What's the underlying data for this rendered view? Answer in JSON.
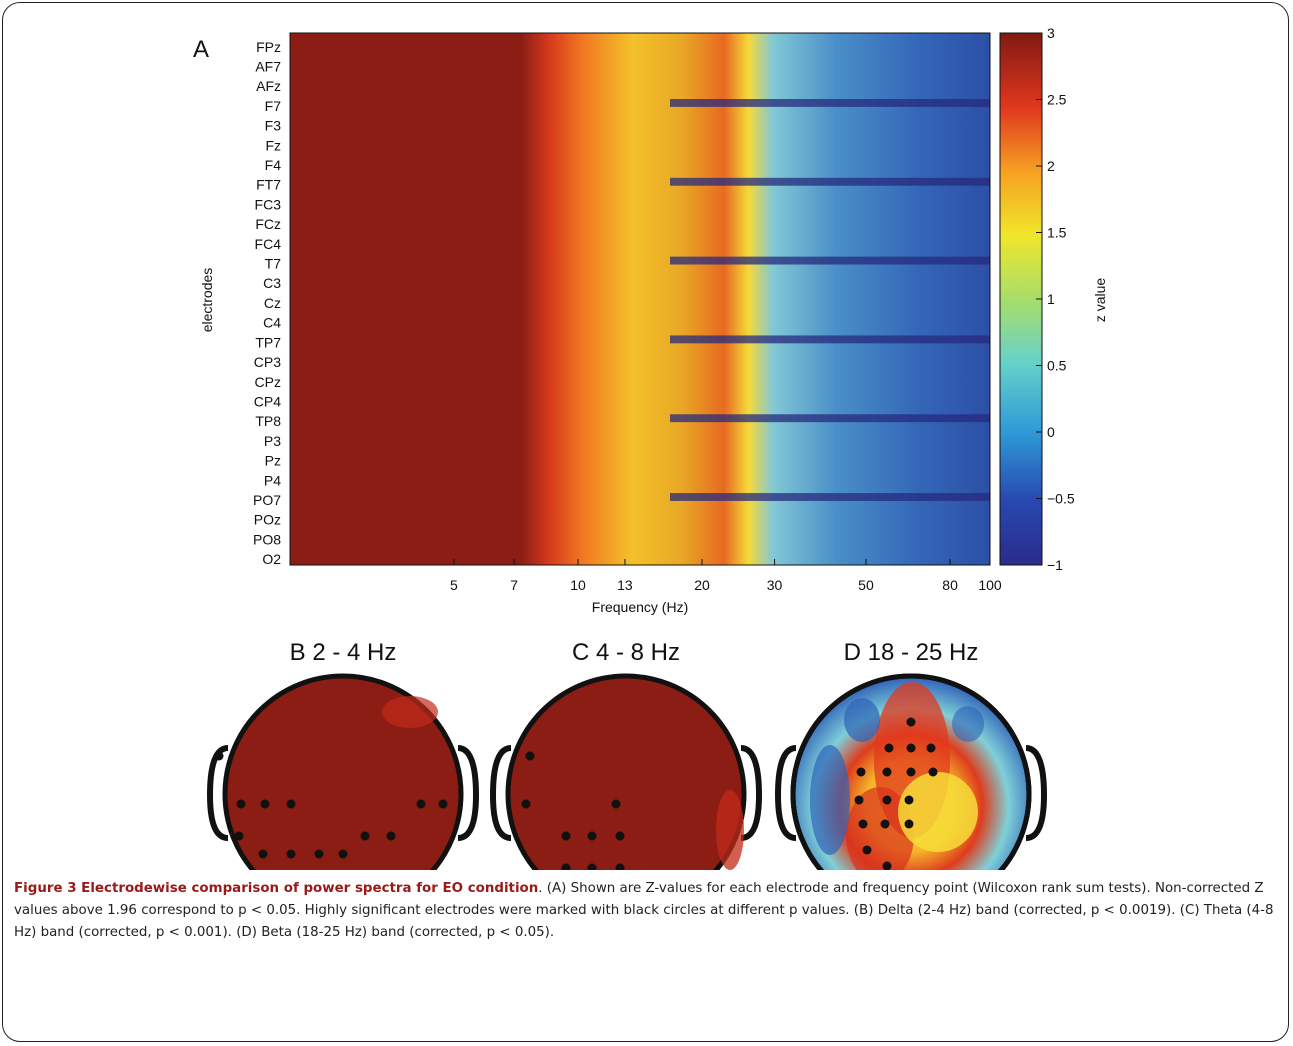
{
  "panel_a": {
    "letter": "A",
    "ylabel": "electrodes",
    "xlabel": "Frequency (Hz)",
    "electrodes": [
      "FPz",
      "AF7",
      "AFz",
      "F7",
      "F3",
      "Fz",
      "F4",
      "FT7",
      "FC3",
      "FCz",
      "FC4",
      "T7",
      "C3",
      "Cz",
      "C4",
      "TP7",
      "CP3",
      "CPz",
      "CP4",
      "TP8",
      "P3",
      "Pz",
      "P4",
      "PO7",
      "POz",
      "PO8",
      "O2"
    ],
    "x_ticks": [
      "5",
      "7",
      "10",
      "13",
      "20",
      "30",
      "50",
      "80",
      "100"
    ],
    "colorbar_label": "z value",
    "colorbar_ticks": [
      "3",
      "2.5",
      "2",
      "1.5",
      "1",
      "0.5",
      "0",
      "−0.5",
      "−1"
    ]
  },
  "topomaps": [
    {
      "title": "B 2 - 4 Hz"
    },
    {
      "title": "C 4 - 8 Hz"
    },
    {
      "title": "D 18 - 25 Hz"
    }
  ],
  "caption": {
    "title": "Figure 3 Electrodewise comparison of power spectra for EO condition",
    "body": ". (A) Shown are Z-values for each electrode and frequency point (Wilcoxon rank sum tests). Non-corrected Z values above 1.96 correspond to p < 0.05. Highly significant electrodes were marked with black circles at different p values. (B) Delta (2-4 Hz) band (corrected, p < 0.0019). (C) Theta (4-8 Hz) band (corrected, p < 0.001). (D) Beta (18-25 Hz) band (corrected, p < 0.05)."
  },
  "chart_data": {
    "type": "heatmap",
    "title": "",
    "xlabel": "Frequency (Hz)",
    "ylabel": "electrodes",
    "x_scale": "log",
    "x_range": [
      2,
      100
    ],
    "colorbar_range": [
      -1,
      3
    ],
    "colorbar_label": "z value",
    "colormap": "jet",
    "bands_approx": [
      {
        "range_hz": [
          2,
          7.5
        ],
        "z": 3
      },
      {
        "range_hz": [
          7.5,
          13
        ],
        "z": 2.5
      },
      {
        "range_hz": [
          13,
          23
        ],
        "z": 2
      },
      {
        "range_hz": [
          23,
          100
        ],
        "z": 0.3
      }
    ]
  }
}
